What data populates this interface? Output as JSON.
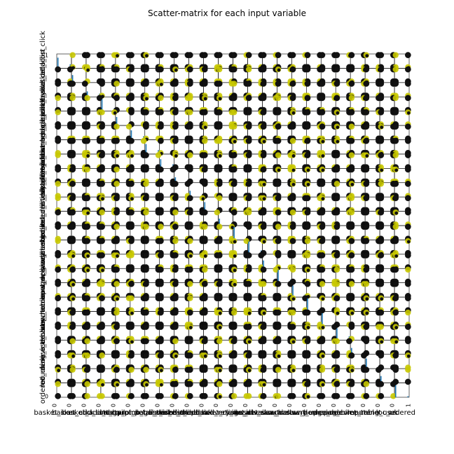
{
  "chart_data": {
    "type": "scatter-matrix",
    "title": "Scatter-matrix for each input variable",
    "variables": [
      "basket_icon_click",
      "basket_add_list",
      "basket_add_detail",
      "sort_by",
      "image_picker",
      "account_page_click",
      "promo_banner_click",
      "detail_wishlist_add",
      "list_size_dropdown",
      "closed_minibasket_click",
      "checked_delivery_detail",
      "checked_returns_detail",
      "sign_in",
      "saw_checkout",
      "saw_sizecharts",
      "saw_delivery",
      "saw_account_upgrade",
      "saw_homepage",
      "device_mobile",
      "device_computer",
      "device_tablet",
      "returning_user",
      "loc_uk",
      "ordered"
    ],
    "axis_range": [
      0,
      1
    ],
    "tick_labels": [
      "0",
      "1"
    ],
    "point_values": [
      0,
      1
    ],
    "diagonal": "histogram",
    "colors": {
      "class_0": "#111111",
      "class_1": "#c8c800",
      "histogram": "#1f77b4",
      "frame": "#000000"
    }
  }
}
